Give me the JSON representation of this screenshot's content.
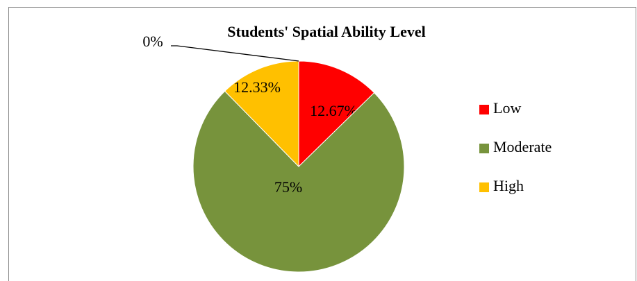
{
  "chart_data": {
    "type": "pie",
    "title": "Students' Spatial Ability Level",
    "categories": [
      "Low",
      "Moderate",
      "High",
      null
    ],
    "values": [
      12.67,
      75,
      12.33,
      0
    ],
    "value_labels": [
      "12.67%",
      "75%",
      "12.33%",
      "0%"
    ],
    "colors": [
      "#ff0000",
      "#77933c",
      "#ffc000"
    ],
    "legend": "right"
  }
}
